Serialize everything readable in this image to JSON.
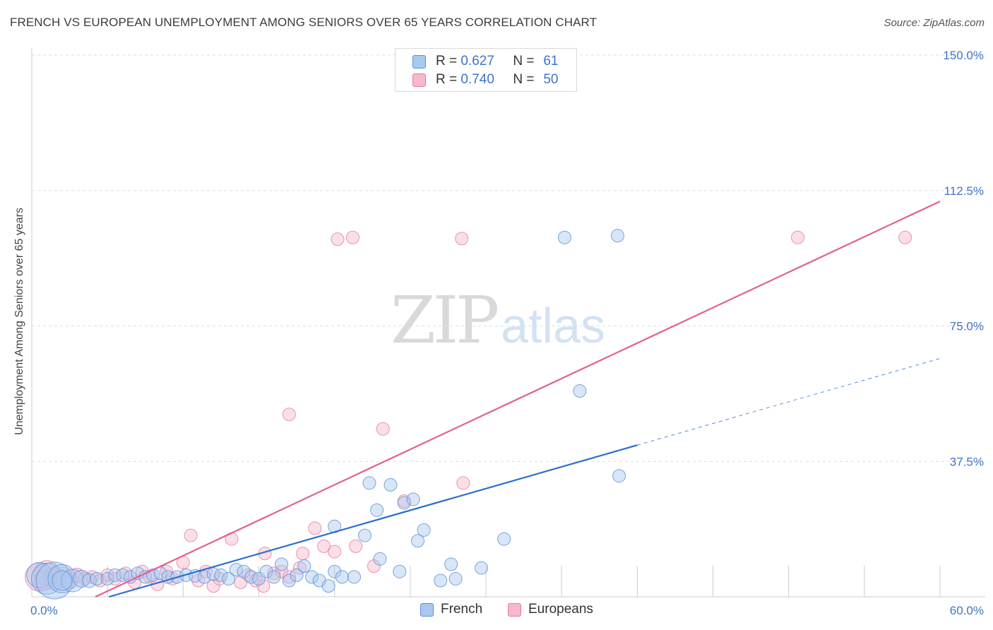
{
  "header": {
    "title": "FRENCH VS EUROPEAN UNEMPLOYMENT AMONG SENIORS OVER 65 YEARS CORRELATION CHART",
    "source": "Source: ZipAtlas.com"
  },
  "watermark": {
    "zip": "ZIP",
    "atlas": "atlas"
  },
  "legend": {
    "french": {
      "r_label": "R =",
      "r_value": "0.627",
      "n_label": "N =",
      "n_value": "61"
    },
    "europeans": {
      "r_label": "R =",
      "r_value": "0.740",
      "n_label": "N =",
      "n_value": "50"
    }
  },
  "bottom_legend": {
    "french": "French",
    "europeans": "Europeans"
  },
  "colors": {
    "french_fill": "#a9c8f0",
    "french_stroke": "#5b8fd6",
    "french_line": "#2a6fcc",
    "europeans_fill": "#f7b8cb",
    "europeans_stroke": "#e47a9b",
    "europeans_line": "#e0628d",
    "tick_label": "#3f74c4",
    "grid": "#dddddd"
  },
  "chart_data": {
    "type": "scatter",
    "title": "FRENCH VS EUROPEAN UNEMPLOYMENT AMONG SENIORS OVER 65 YEARS CORRELATION CHART",
    "xlabel": "",
    "ylabel": "Unemployment Among Seniors over 65 years",
    "xlim": [
      0,
      60
    ],
    "ylim": [
      0,
      150
    ],
    "x_tick_labels": [
      "0.0%",
      "60.0%"
    ],
    "y_ticks": [
      37.5,
      75,
      112.5,
      150
    ],
    "y_tick_labels": [
      "37.5%",
      "75.0%",
      "112.5%",
      "150.0%"
    ],
    "grid": true,
    "legend_position": "top-center",
    "series": [
      {
        "name": "French",
        "trend": {
          "x0": 5.1,
          "y0": 0,
          "x1": 40,
          "y1": 42,
          "dashed_to_x": 60,
          "dashed_to_y": 66
        },
        "points": [
          [
            0.5,
            6,
            18
          ],
          [
            1.0,
            5,
            22
          ],
          [
            1.5,
            4.5,
            26
          ],
          [
            2.0,
            5,
            20
          ],
          [
            2.7,
            4.5,
            16
          ],
          [
            3.3,
            5,
            12
          ],
          [
            3.8,
            4.5,
            10
          ],
          [
            4.3,
            5,
            9
          ],
          [
            5.0,
            5,
            9
          ],
          [
            5.5,
            6,
            9
          ],
          [
            6.0,
            6,
            9
          ],
          [
            6.5,
            5.5,
            9
          ],
          [
            7.0,
            6.5,
            9
          ],
          [
            7.5,
            5.5,
            9
          ],
          [
            8.0,
            6,
            9
          ],
          [
            8.5,
            6.5,
            9
          ],
          [
            9.0,
            5.5,
            9
          ],
          [
            9.6,
            5.5,
            9
          ],
          [
            10.2,
            6,
            9
          ],
          [
            10.8,
            5.8,
            9
          ],
          [
            11.4,
            5.5,
            9
          ],
          [
            12.0,
            6.3,
            9
          ],
          [
            12.5,
            6,
            9
          ],
          [
            13.0,
            5,
            9
          ],
          [
            13.5,
            7.5,
            9
          ],
          [
            14.0,
            7,
            9
          ],
          [
            14.5,
            5.5,
            9
          ],
          [
            15.0,
            5,
            9
          ],
          [
            15.5,
            7,
            9
          ],
          [
            16.0,
            5.5,
            9
          ],
          [
            16.5,
            9,
            9
          ],
          [
            17.0,
            4.5,
            9
          ],
          [
            17.5,
            6,
            9
          ],
          [
            18.0,
            8.5,
            9
          ],
          [
            18.5,
            5.5,
            9
          ],
          [
            19.0,
            4.5,
            9
          ],
          [
            19.6,
            3,
            9
          ],
          [
            20.0,
            7,
            9
          ],
          [
            20.5,
            5.5,
            9
          ],
          [
            20.0,
            19.5,
            9
          ],
          [
            21.3,
            5.5,
            9
          ],
          [
            22.0,
            17,
            9
          ],
          [
            22.3,
            31.5,
            9
          ],
          [
            22.8,
            24,
            9
          ],
          [
            23.0,
            10.5,
            9
          ],
          [
            23.7,
            31,
            9
          ],
          [
            24.3,
            7,
            9
          ],
          [
            24.6,
            26,
            9
          ],
          [
            25.2,
            27,
            9
          ],
          [
            25.5,
            15.5,
            9
          ],
          [
            25.9,
            18.5,
            9
          ],
          [
            27.0,
            4.5,
            9
          ],
          [
            27.7,
            9,
            9
          ],
          [
            28.0,
            5,
            9
          ],
          [
            29.7,
            8,
            9
          ],
          [
            31.2,
            16,
            9
          ],
          [
            35.2,
            99.5,
            9
          ],
          [
            36.2,
            57,
            9
          ],
          [
            38.7,
            100,
            9
          ],
          [
            38.8,
            33.5,
            9
          ],
          [
            2.0,
            4.5,
            14
          ]
        ]
      },
      {
        "name": "Europeans",
        "trend": {
          "x0": 4.2,
          "y0": 0,
          "x1": 60,
          "y1": 109.5
        },
        "points": [
          [
            0.5,
            5.5,
            20
          ],
          [
            1.0,
            6.5,
            18
          ],
          [
            1.5,
            5,
            16
          ],
          [
            2.0,
            5.5,
            14
          ],
          [
            2.5,
            4.5,
            12
          ],
          [
            3.0,
            6,
            10
          ],
          [
            3.5,
            5,
            9
          ],
          [
            4.0,
            5.5,
            9
          ],
          [
            4.5,
            4.5,
            9
          ],
          [
            5.0,
            6,
            9
          ],
          [
            5.5,
            5,
            9
          ],
          [
            6.2,
            6.5,
            9
          ],
          [
            6.8,
            4,
            9
          ],
          [
            7.3,
            7,
            9
          ],
          [
            7.8,
            5.5,
            9
          ],
          [
            8.3,
            3.5,
            9
          ],
          [
            8.9,
            7,
            9
          ],
          [
            9.3,
            5,
            9
          ],
          [
            10.0,
            9.5,
            9
          ],
          [
            10.5,
            17,
            9
          ],
          [
            11.0,
            4.5,
            9
          ],
          [
            11.5,
            7,
            9
          ],
          [
            12.0,
            3,
            9
          ],
          [
            12.4,
            5,
            9
          ],
          [
            13.2,
            16,
            9
          ],
          [
            13.8,
            4,
            9
          ],
          [
            14.3,
            6,
            9
          ],
          [
            14.8,
            4.5,
            9
          ],
          [
            15.3,
            3,
            9
          ],
          [
            15.4,
            12,
            9
          ],
          [
            16.0,
            6.5,
            9
          ],
          [
            16.5,
            7,
            9
          ],
          [
            17.0,
            5.5,
            9
          ],
          [
            17.7,
            8,
            9
          ],
          [
            17.9,
            12,
            9
          ],
          [
            17.0,
            50.5,
            9
          ],
          [
            18.7,
            19,
            9
          ],
          [
            19.3,
            14,
            9
          ],
          [
            20.0,
            12.5,
            9
          ],
          [
            20.2,
            99,
            9
          ],
          [
            21.2,
            99.5,
            9
          ],
          [
            21.4,
            14,
            9
          ],
          [
            22.6,
            8.5,
            9
          ],
          [
            23.2,
            46.5,
            9
          ],
          [
            24.6,
            26.5,
            9
          ],
          [
            28.4,
            99.2,
            9
          ],
          [
            28.5,
            31.5,
            9
          ],
          [
            50.6,
            99.5,
            9
          ],
          [
            57.7,
            99.5,
            9
          ],
          [
            0.8,
            4.5,
            14
          ]
        ]
      }
    ]
  }
}
